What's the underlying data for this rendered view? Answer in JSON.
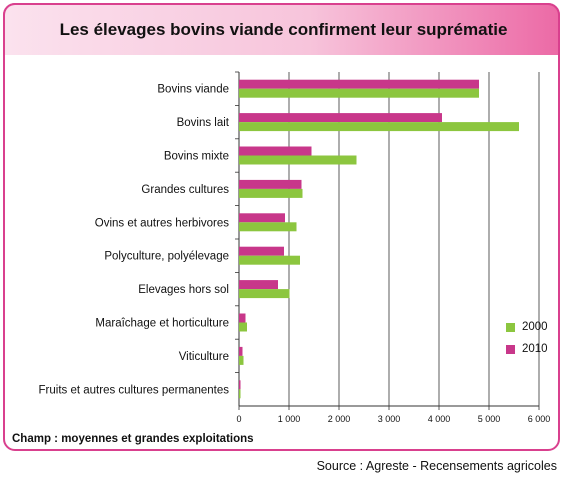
{
  "header": {
    "title": "Les élevages bovins viande confirment leur suprématie"
  },
  "footnote": "Champ : moyennes et grandes exploitations",
  "source": "Source : Agreste - Recensements agricoles",
  "colors": {
    "accent": "#d9408e",
    "series_2000": "#8cc63f",
    "series_2010": "#c8378a"
  },
  "chart_data": {
    "type": "bar",
    "orientation": "horizontal",
    "categories": [
      "Bovins viande",
      "Bovins lait",
      "Bovins mixte",
      "Grandes cultures",
      "Ovins et autres herbivores",
      "Polyculture, polyélevage",
      "Elevages hors sol",
      "Maraîchage et horticulture",
      "Viticulture",
      "Fruits et autres cultures permanentes"
    ],
    "series": [
      {
        "name": "2010",
        "color": "#c8378a",
        "values": [
          4800,
          4060,
          1450,
          1250,
          920,
          900,
          780,
          130,
          70,
          30
        ]
      },
      {
        "name": "2000",
        "color": "#8cc63f",
        "values": [
          4800,
          5600,
          2350,
          1270,
          1150,
          1220,
          1010,
          160,
          90,
          30
        ]
      }
    ],
    "xlim": [
      0,
      6000
    ],
    "xticks": [
      "0",
      "1 000",
      "2 000",
      "3 000",
      "4 000",
      "5 000",
      "6 000"
    ],
    "grid": true,
    "legend": {
      "position": "right",
      "items": [
        "2000",
        "2010"
      ]
    }
  }
}
